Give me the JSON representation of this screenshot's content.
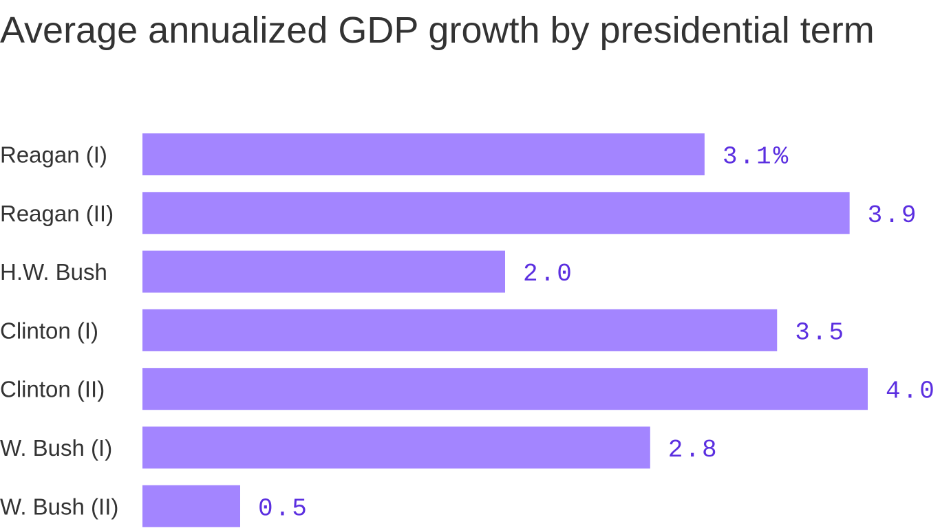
{
  "chart_data": {
    "type": "bar",
    "orientation": "horizontal",
    "title": "Average annualized GDP growth by presidential term",
    "categories": [
      "Reagan (I)",
      "Reagan (II)",
      "H.W. Bush",
      "Clinton (I)",
      "Clinton (II)",
      "W. Bush (I)",
      "W. Bush (II)"
    ],
    "values": [
      3.1,
      3.9,
      2.0,
      3.5,
      4.0,
      2.8,
      0.5
    ],
    "data_labels": [
      "3.1%",
      "3.9",
      "2.0",
      "3.5",
      "4.0",
      "2.8",
      "0.5"
    ],
    "xlim": [
      0,
      4.0
    ],
    "grid": false,
    "colors": {
      "bar": "#a385ff",
      "label": "#5b2fe0",
      "text": "#333333"
    }
  }
}
